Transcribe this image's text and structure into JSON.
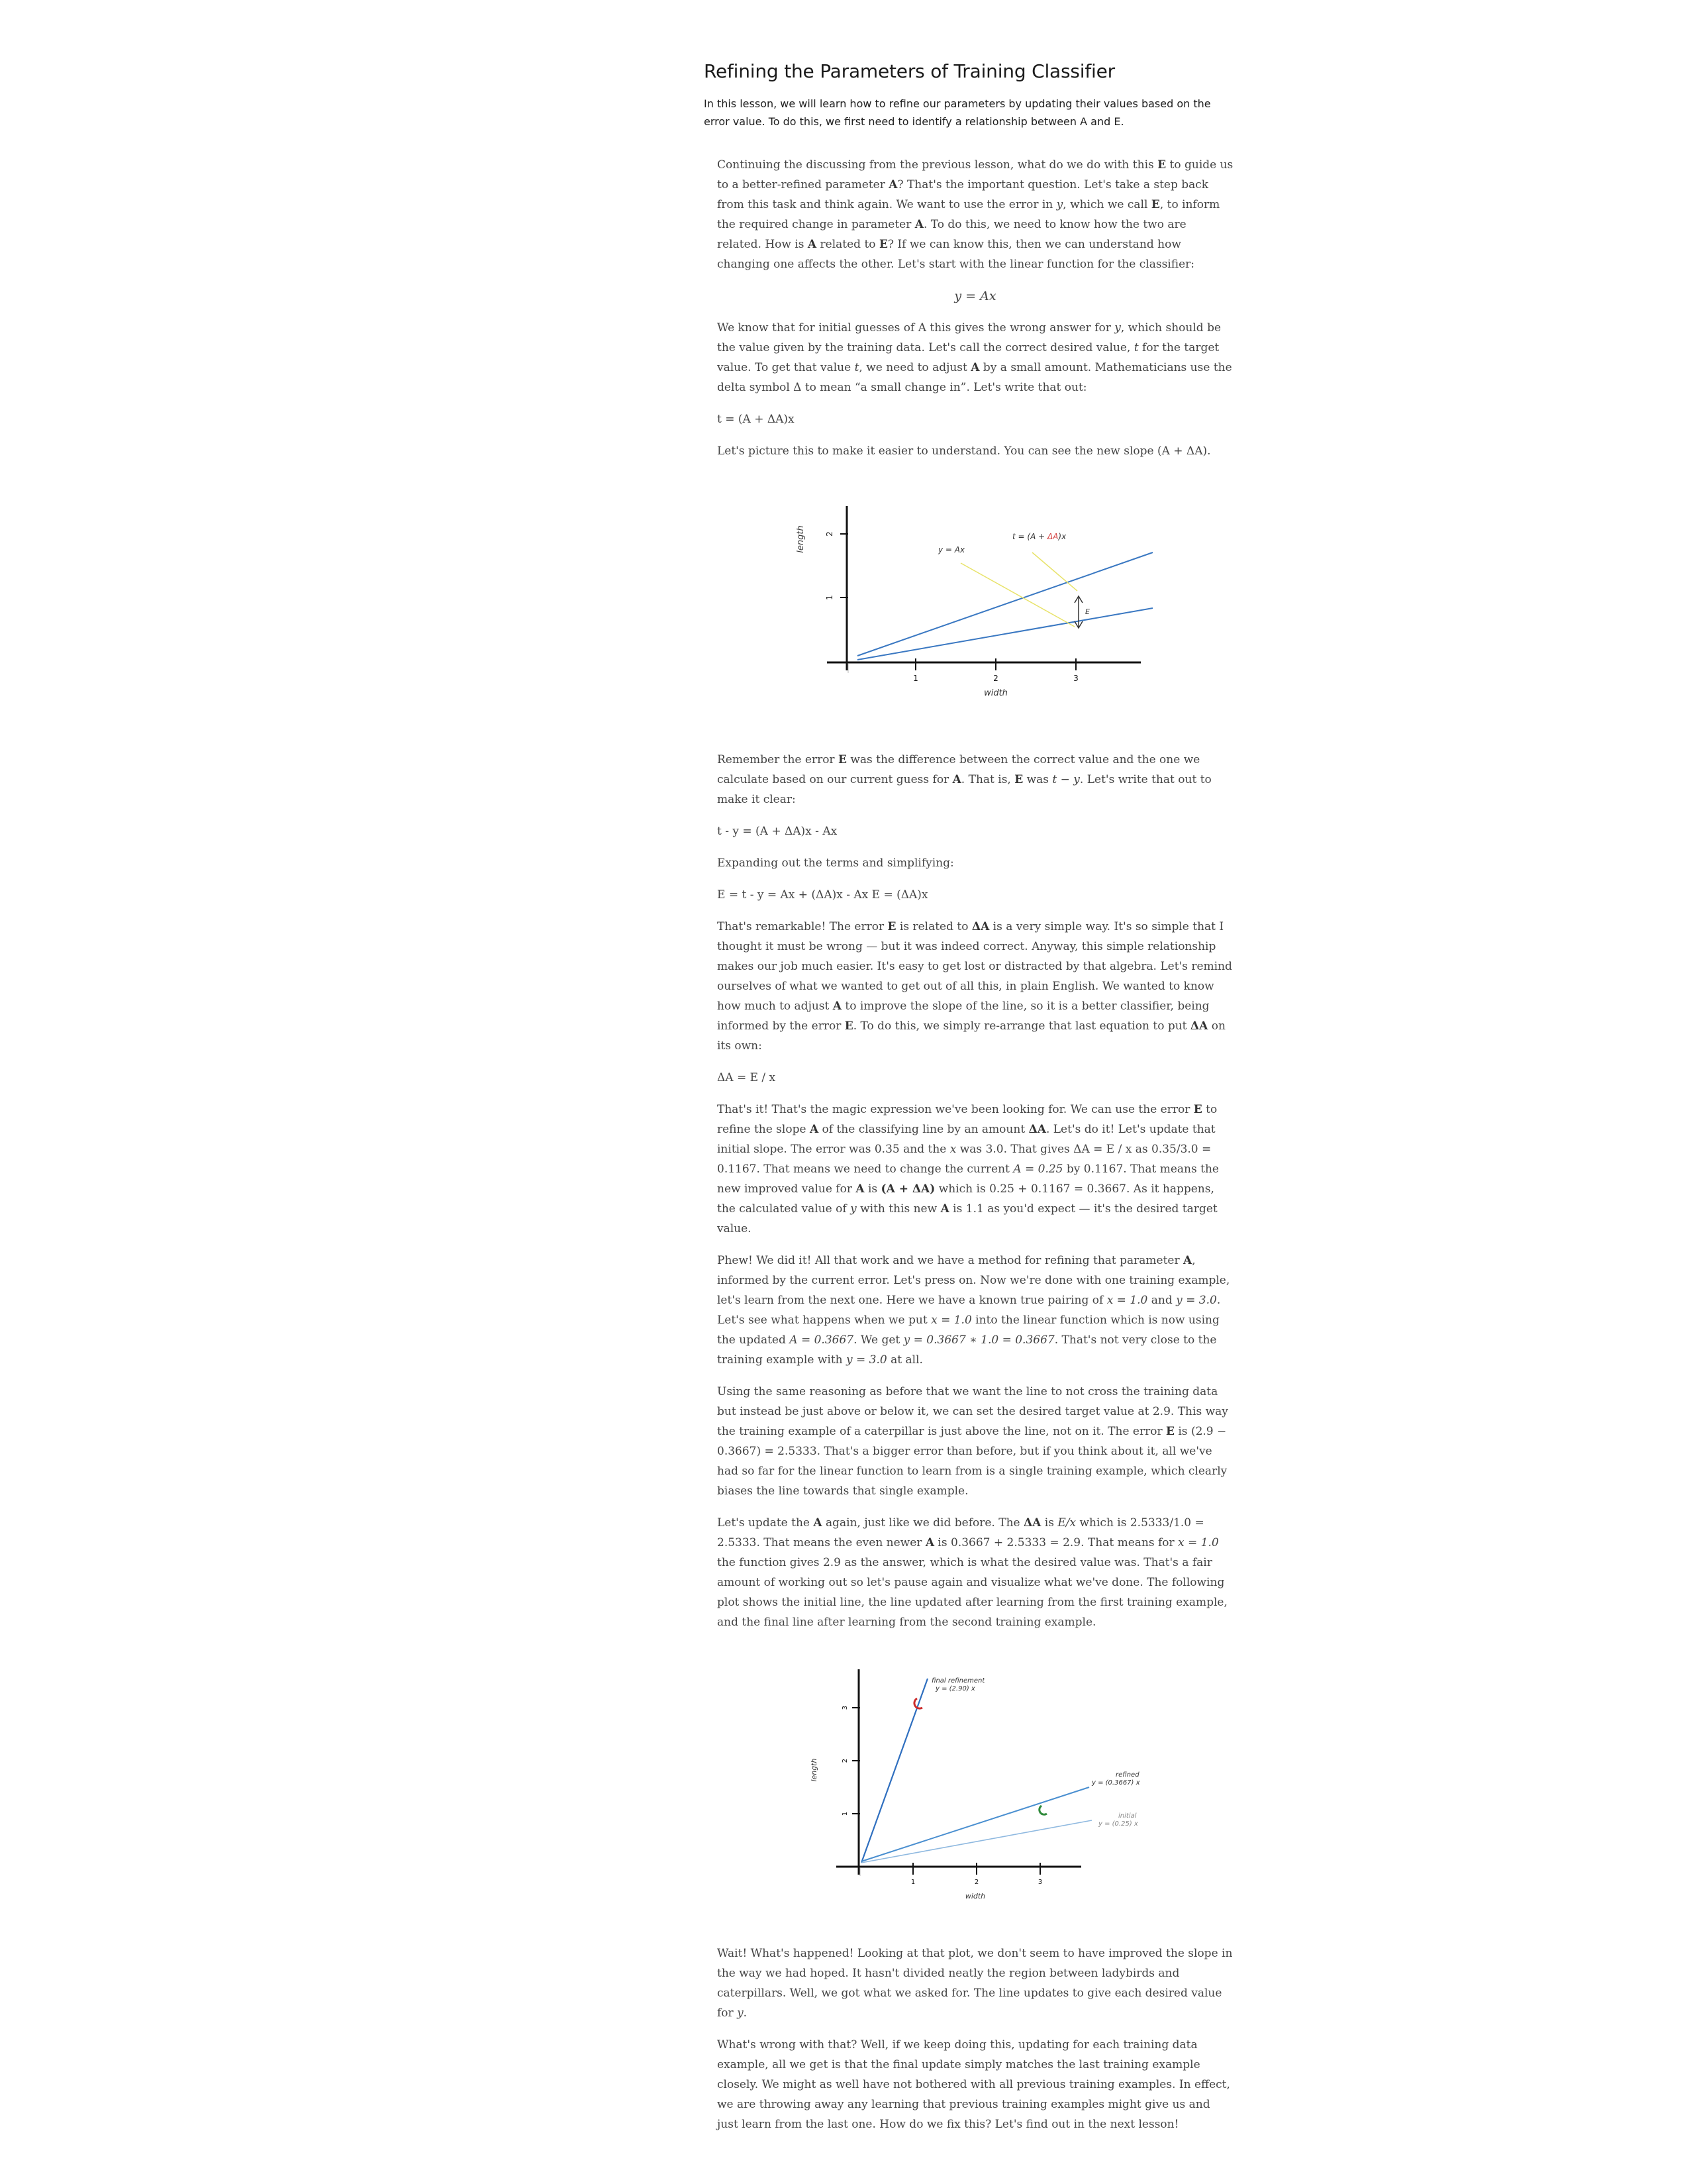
{
  "header": {
    "title": "Refining the Parameters of Training Classifier",
    "intro": "In this lesson, we will learn how to refine our parameters by updating their values based on the error value. To do this, we first need to identify a relationship between A and E."
  },
  "article": {
    "p1": {
      "a": "Continuing the discussing from the previous lesson, what do we do with this ",
      "b": "E",
      "c": " to guide us to a better-refined parameter ",
      "d": "A",
      "e": "? That's the important question. Let's take a step back from this task and think again. We want to use the error in ",
      "f": "y",
      "g": ", which we call ",
      "h": "E",
      "i": ", to inform the required change in parameter ",
      "j": "A",
      "k": ". To do this, we need to know how the two are related. How is ",
      "l": "A",
      "m": " related to ",
      "n": "E",
      "o": "? If we can know this, then we can understand how changing one affects the other. Let's start with the linear function for the classifier:"
    },
    "eq1": "y = Ax",
    "p2": {
      "a": "We know that for initial guesses of A this gives the wrong answer for ",
      "b": "y",
      "c": ", which should be the value given by the training data. Let's call the correct desired value, ",
      "d": "t",
      "e": " for the target value. To get that value ",
      "f": "t",
      "g": ", we need to adjust ",
      "h": "A",
      "i": " by a small amount. Mathematicians use the delta symbol Δ to mean “a small change in”. Let's write that out:"
    },
    "eq2": "t = (A + ΔA)x",
    "p3": "Let's picture this to make it easier to understand. You can see the new slope (A + ΔA).",
    "p4": {
      "a": "Remember the error ",
      "b": "E",
      "c": " was the difference between the correct value and the one we calculate based on our current guess for ",
      "d": "A",
      "e": ". That is, ",
      "f": "E",
      "g": " was ",
      "h": "t − y",
      "i": ". Let's write that out to make it clear:"
    },
    "eq3": "t - y = (A + ΔA)x - Ax",
    "p5": "Expanding out the terms and simplifying:",
    "eq4": "E = t - y = Ax + (ΔA)x - Ax E = (ΔA)x",
    "p6": {
      "a": "That's remarkable! The error ",
      "b": "E",
      "c": " is related to ",
      "d": "ΔA",
      "e": " is a very simple way. It's so simple that I thought it must be wrong — but it was indeed correct. Anyway, this simple relationship makes our job much easier. It's easy to get lost or distracted by that algebra. Let's remind ourselves of what we wanted to get out of all this, in plain English. We wanted to know how much to adjust ",
      "f": "A",
      "g": " to improve the slope of the line, so it is a better classifier, being informed by the error ",
      "h": "E",
      "i": ". To do this, we simply re-arrange that last equation to put ",
      "j": "ΔA",
      "k": " on its own:"
    },
    "eq5": "ΔA = E / x",
    "p7": {
      "a": "That's it! That's the magic expression we've been looking for. We can use the error ",
      "b": "E",
      "c": " to refine the slope ",
      "d": "A",
      "e": " of the classifying line by an amount ",
      "f": "ΔA",
      "g": ". Let's do it! Let's update that initial slope. The error was ",
      "h": "0.35",
      "i": " and the ",
      "j": "x",
      "k": " was ",
      "l": "3.0",
      "m": ". That gives ΔA = E / x as ",
      "n": "0.35/3.0 = 0.1167",
      "o": ". That means we need to change the current ",
      "p": "A = 0.25",
      "q": " by ",
      "r": "0.1167",
      "s": ". That means the new improved value for ",
      "t": "A",
      "u": " is ",
      "v": "(A + ΔA)",
      "w": " which is ",
      "x": "0.25 + 0.1167 = 0.3667",
      "y": ". As it happens, the calculated value of ",
      "z": "y",
      "aa": " with this new ",
      "ab": "A",
      "ac": " is 1.1 as you'd expect — it's the desired target value."
    },
    "p8": {
      "a": "Phew! We did it! All that work and we have a method for refining that parameter ",
      "b": "A",
      "c": ", informed by the current error. Let's press on. Now we're done with one training example, let's learn from the next one. Here we have a known true pairing of ",
      "d": "x = 1.0",
      "e": " and ",
      "f": "y = 3.0",
      "g": ". Let's see what happens when we put ",
      "h": "x = 1.0",
      "i": " into the linear function which is now using the updated ",
      "j": "A = 0.3667",
      "k": ". We get ",
      "l": "y = 0.3667 ∗ 1.0 = 0.3667",
      "m": ". That's not very close to the training example with ",
      "n": "y = 3.0",
      "o": " at all."
    },
    "p9": {
      "a": "Using the same reasoning as before that we want the line to not cross the training data but instead be just above or below it, we can set the desired target value at ",
      "b": "2.9",
      "c": ". This way the training example of a caterpillar is just above the line, not on it. The error ",
      "d": "E",
      "e": " is ",
      "f": "(2.9 − 0.3667) = 2.5333",
      "g": ". That's a bigger error than before, but if you think about it, all we've had so far for the linear function to learn from is a single training example, which clearly biases the line towards that single example."
    },
    "p10": {
      "a": "Let's update the ",
      "b": "A",
      "c": " again, just like we did before. The ",
      "d": "ΔA",
      "e": " is ",
      "f": "E/x",
      "g": " which is ",
      "h": "2.5333/1.0 = 2.5333",
      "i": ". That means the even newer ",
      "j": "A",
      "k": " is ",
      "l": "0.3667 + 2.5333 = 2.9",
      "m": ". That means for ",
      "n": "x = 1.0",
      "o": " the function gives ",
      "p": "2.9",
      "q": " as the answer, which is what the desired value was. That's a fair amount of working out so let's pause again and visualize what we've done. The following plot shows the initial line, the line updated after learning from the first training example, and the final line after learning from the second training example."
    },
    "p11": {
      "a": "Wait! What's happened! Looking at that plot, we don't seem to have improved the slope in the way we had hoped. It hasn't divided neatly the region between ladybirds and caterpillars. Well, we got what we asked for. The line updates to give each desired value for ",
      "b": "y",
      "c": "."
    },
    "p12": "What's wrong with that? Well, if we keep doing this, updating for each training data example, all we get is that the final update simply matches the last training example closely. We might as well have not bothered with all previous training examples. In effect, we are throwing away any learning that previous training examples might give us and just learn from the last one. How do we fix this? Let's find out in the next lesson!"
  },
  "figure1": {
    "ylabel": "length",
    "xlabel": "width",
    "yticks": [
      "1",
      "2"
    ],
    "xticks": [
      "1",
      "2",
      "3"
    ],
    "label_y": "y = Ax",
    "label_t_prefix": "t = (A + ",
    "label_t_delta": "ΔA",
    "label_t_suffix": ")x",
    "label_error": "E",
    "colors": {
      "line": "#3a78c2",
      "leader": "#e8e36a",
      "delta": "#d23a3a",
      "axis": "#111111"
    }
  },
  "figure2": {
    "ylabel": "length",
    "xlabel": "width",
    "yticks": [
      "1",
      "2",
      "3"
    ],
    "xticks": [
      "1",
      "2",
      "3"
    ],
    "final_label": "final refinement",
    "final_eq": "y = (2.90) x",
    "refined_label": "refined",
    "refined_eq": "y = (0.3667) x",
    "initial_label": "initial",
    "initial_eq": "y = (0.25) x",
    "colors": {
      "final": "#2f6fbf",
      "refined": "#4a8fd0",
      "initial": "#8fb9e0",
      "ladybird": "#cc2b2b",
      "caterpillar": "#2f8a3a"
    }
  }
}
